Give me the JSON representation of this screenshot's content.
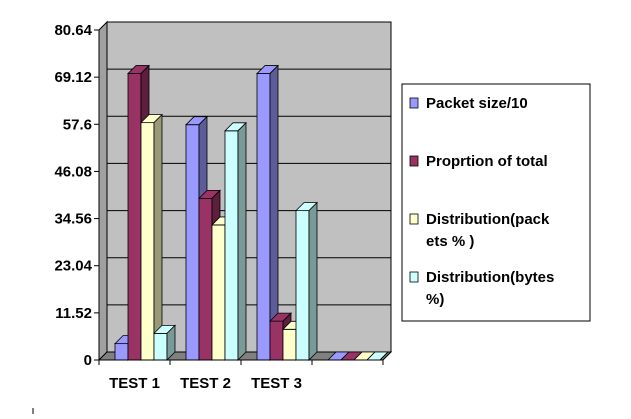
{
  "chart_data": {
    "type": "bar",
    "categories": [
      "TEST 1",
      "TEST 2",
      "TEST 3",
      ""
    ],
    "series": [
      {
        "name": "Packet size/10",
        "color": "#9999FF",
        "values": [
          4,
          57.5,
          70,
          0
        ]
      },
      {
        "name": "Proprtion of total",
        "color": "#993366",
        "values": [
          70,
          39.5,
          9.5,
          0
        ]
      },
      {
        "name": "Distribution(pack ets % )",
        "legend_lines": [
          "Distribution(pack",
          "ets % )"
        ],
        "color": "#FFFFCC",
        "values": [
          58,
          33,
          7.5,
          0
        ]
      },
      {
        "name": "Distribution(bytes %)",
        "legend_lines": [
          "Distribution(bytes",
          "%)"
        ],
        "color": "#CCFFFF",
        "values": [
          6.5,
          56,
          36.5,
          0
        ]
      }
    ],
    "yticks": [
      "0",
      "11.52",
      "23.04",
      "34.56",
      "46.08",
      "57.6",
      "69.12",
      "80.64"
    ],
    "ylim": [
      0,
      80.64
    ],
    "title": "",
    "xlabel": "",
    "ylabel": "",
    "grid": true,
    "legend_position": "right",
    "plot_background": "#C0C0C0"
  }
}
